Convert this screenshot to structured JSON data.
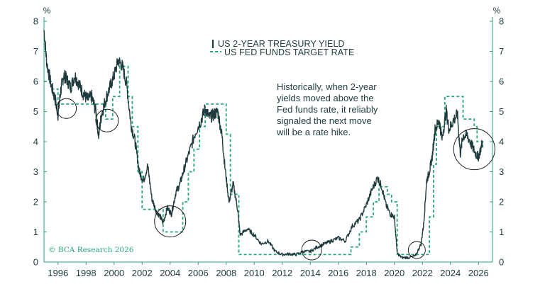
{
  "chart_data": {
    "type": "line",
    "y_unit_label_left": "%",
    "y_unit_label_right": "%",
    "ylim": [
      0,
      8
    ],
    "yticks": [
      0,
      1,
      2,
      3,
      4,
      5,
      6,
      7,
      8
    ],
    "xlim": [
      1995,
      2027
    ],
    "xticks": [
      1996,
      1998,
      2000,
      2002,
      2004,
      2006,
      2008,
      2010,
      2012,
      2014,
      2016,
      2018,
      2020,
      2022,
      2024,
      2026
    ],
    "legend": [
      {
        "label": "US 2-YEAR TREASURY YIELD",
        "style": "solid",
        "color": "#1f3b3e"
      },
      {
        "label": "US FED FUNDS TARGET RATE",
        "style": "dashed",
        "color": "#2aa67c"
      }
    ],
    "annotation": [
      "Historically, when 2-year",
      "yields moved above the",
      "Fed funds rate, it reliably",
      "signaled the next move",
      "will be a rate hike."
    ],
    "credit": "© BCA Research 2026",
    "series": [
      {
        "name": "US 2-YEAR TREASURY YIELD",
        "x": [
          1995.0,
          1995.2,
          1995.5,
          1995.8,
          1996.0,
          1996.2,
          1996.4,
          1996.6,
          1996.9,
          1997.2,
          1997.5,
          1997.8,
          1998.1,
          1998.4,
          1998.7,
          1998.9,
          1999.1,
          1999.4,
          1999.7,
          2000.0,
          2000.3,
          2000.6,
          2000.9,
          2001.2,
          2001.5,
          2001.8,
          2002.1,
          2002.4,
          2002.7,
          2003.0,
          2003.3,
          2003.5,
          2003.8,
          2004.1,
          2004.4,
          2004.7,
          2005.0,
          2005.4,
          2005.8,
          2006.2,
          2006.5,
          2006.8,
          2007.1,
          2007.4,
          2007.7,
          2007.9,
          2008.2,
          2008.5,
          2008.8,
          2009.0,
          2009.5,
          2010.0,
          2010.5,
          2011.0,
          2011.5,
          2012.0,
          2012.5,
          2013.0,
          2013.5,
          2014.0,
          2014.5,
          2015.0,
          2015.5,
          2016.0,
          2016.5,
          2017.0,
          2017.5,
          2018.0,
          2018.4,
          2018.8,
          2019.1,
          2019.4,
          2019.7,
          2020.0,
          2020.2,
          2020.5,
          2021.0,
          2021.5,
          2021.9,
          2022.1,
          2022.3,
          2022.5,
          2022.7,
          2022.9,
          2023.2,
          2023.4,
          2023.7,
          2023.9,
          2024.2,
          2024.5,
          2024.7,
          2024.9,
          2025.2,
          2025.5,
          2025.8,
          2026.0,
          2026.3
        ],
        "values": [
          7.7,
          6.6,
          5.9,
          5.4,
          4.9,
          5.7,
          6.2,
          6.1,
          5.8,
          6.2,
          5.9,
          5.6,
          5.4,
          5.5,
          5.0,
          4.2,
          4.9,
          5.4,
          5.8,
          6.2,
          6.7,
          6.5,
          5.9,
          4.6,
          4.0,
          3.0,
          2.7,
          3.2,
          2.1,
          1.7,
          1.5,
          1.3,
          1.8,
          1.6,
          2.3,
          2.6,
          3.1,
          3.7,
          4.3,
          4.7,
          5.1,
          4.8,
          4.9,
          5.0,
          4.2,
          3.2,
          2.0,
          2.6,
          1.8,
          0.9,
          1.1,
          0.9,
          0.6,
          0.7,
          0.35,
          0.25,
          0.27,
          0.25,
          0.35,
          0.35,
          0.5,
          0.6,
          0.7,
          0.8,
          0.7,
          1.2,
          1.4,
          1.9,
          2.4,
          2.8,
          2.5,
          1.9,
          1.6,
          1.5,
          0.3,
          0.15,
          0.15,
          0.2,
          0.6,
          1.3,
          2.7,
          3.0,
          3.5,
          4.4,
          4.7,
          4.1,
          5.0,
          4.4,
          4.7,
          4.9,
          3.6,
          4.2,
          4.2,
          3.9,
          3.6,
          3.5,
          4.0
        ]
      },
      {
        "name": "US FED FUNDS TARGET RATE",
        "x": [
          1995.0,
          1995.5,
          1996.0,
          1998.8,
          1999.4,
          1999.9,
          2000.4,
          2001.0,
          2001.3,
          2001.7,
          2002.0,
          2002.8,
          2003.5,
          2004.5,
          2004.9,
          2005.3,
          2005.7,
          2006.1,
          2006.5,
          2007.7,
          2008.0,
          2008.3,
          2008.9,
          2015.9,
          2016.9,
          2017.5,
          2018.0,
          2018.5,
          2018.9,
          2019.5,
          2019.8,
          2020.2,
          2022.2,
          2022.5,
          2022.8,
          2023.0,
          2023.6,
          2024.7,
          2024.9,
          2025.7,
          2025.9,
          2026.3
        ],
        "values": [
          6.0,
          5.75,
          5.25,
          5.25,
          4.75,
          5.5,
          6.5,
          5.5,
          4.5,
          3.0,
          1.75,
          1.75,
          1.0,
          1.0,
          2.0,
          3.0,
          3.75,
          4.5,
          5.25,
          5.25,
          4.25,
          2.25,
          0.25,
          0.25,
          0.5,
          1.0,
          1.5,
          2.0,
          2.5,
          2.25,
          2.0,
          0.25,
          0.25,
          1.5,
          3.25,
          4.5,
          5.5,
          5.5,
          4.75,
          4.5,
          4.0,
          3.75
        ]
      }
    ]
  }
}
